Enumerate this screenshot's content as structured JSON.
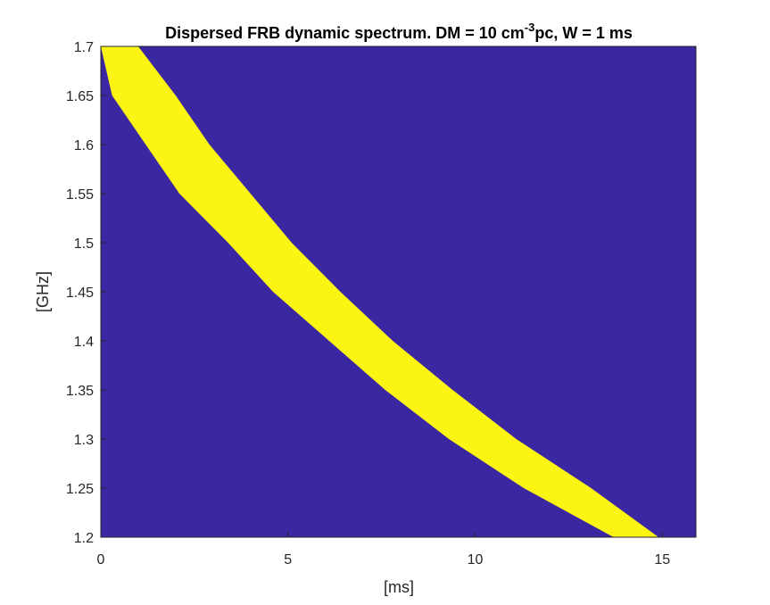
{
  "chart_data": {
    "type": "heatmap",
    "title": {
      "main": "Dispersed FRB dynamic spectrum. DM = 10 cm",
      "superscript": "-3",
      "suffix": "pc, W = 1 ms"
    },
    "xlabel": "[ms]",
    "ylabel": "[GHz]",
    "xlim": [
      0,
      15.9
    ],
    "ylim": [
      1.2,
      1.7
    ],
    "xticks": [
      0,
      5,
      10,
      15
    ],
    "yticks": [
      1.2,
      1.25,
      1.3,
      1.35,
      1.4,
      1.45,
      1.5,
      1.55,
      1.6,
      1.65,
      1.7
    ],
    "grid": false,
    "dm": 10,
    "width_ms": 1,
    "band": {
      "leading_edge": {
        "freq_ghz": [
          1.7,
          1.65,
          1.6,
          1.55,
          1.5,
          1.45,
          1.4,
          1.35,
          1.3,
          1.25,
          1.2
        ],
        "time_ms": [
          0.0,
          0.3,
          1.2,
          2.1,
          3.4,
          4.6,
          6.1,
          7.6,
          9.3,
          11.3,
          13.7
        ]
      },
      "trailing_edge": {
        "freq_ghz": [
          1.7,
          1.65,
          1.6,
          1.55,
          1.5,
          1.45,
          1.4,
          1.35,
          1.3,
          1.25,
          1.2
        ],
        "time_ms": [
          1.0,
          2.0,
          2.9,
          4.0,
          5.1,
          6.4,
          7.8,
          9.4,
          11.1,
          13.1,
          14.9
        ]
      }
    },
    "colors": {
      "background": "#3b27a1",
      "band": "#fcf514",
      "axes": "#262626"
    }
  }
}
